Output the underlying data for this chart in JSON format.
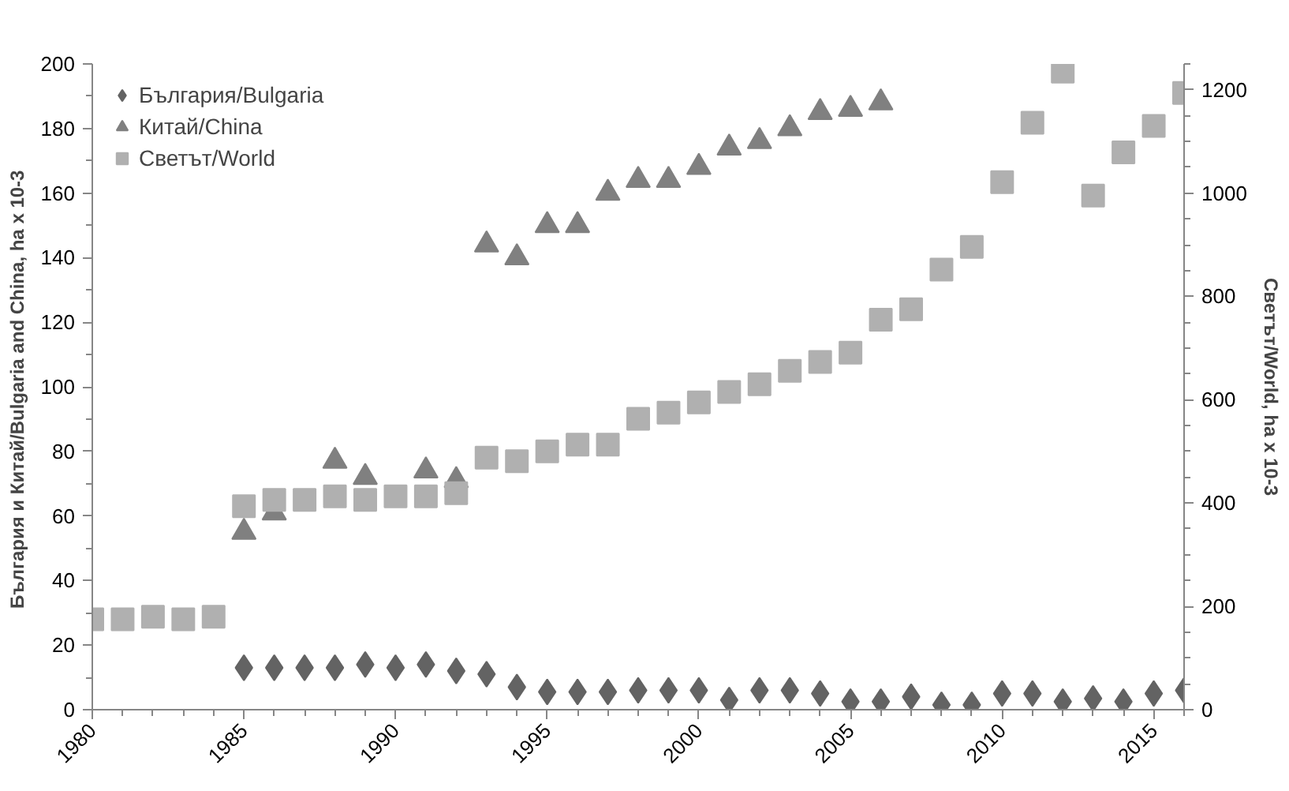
{
  "chart_data": {
    "type": "scatter",
    "xlabel": null,
    "ylabel": "България и Китай/Bulgaria  and China, ha x 10-3",
    "y2label": "Светът/World, ha x 10-3",
    "xlim": [
      1980,
      2016
    ],
    "xticks": [
      1980,
      1985,
      1990,
      1995,
      2000,
      2005,
      2010,
      2015
    ],
    "ylim": [
      0,
      200
    ],
    "yticks": [
      0,
      20,
      40,
      60,
      80,
      100,
      120,
      140,
      160,
      180,
      200
    ],
    "y2lim": [
      0,
      1250
    ],
    "y2ticks": [
      0,
      200,
      400,
      600,
      800,
      1000,
      1200
    ],
    "grid": false,
    "legend": "top left",
    "series": [
      {
        "name": "България/Bulgaria",
        "color": "#636363",
        "marker": "diamond",
        "x": [
          1985,
          1986,
          1987,
          1988,
          1989,
          1990,
          1991,
          1992,
          1993,
          1994,
          1995,
          1996,
          1997,
          1998,
          1999,
          2000,
          2001,
          2002,
          2003,
          2004,
          2005,
          2006,
          2007,
          2008,
          2009,
          2010,
          2011,
          2012,
          2013,
          2014,
          2015,
          2016
        ],
        "values": [
          13,
          13,
          13,
          13,
          14,
          13,
          14,
          12,
          11,
          7,
          5.5,
          5.5,
          5.5,
          6,
          6,
          6,
          3,
          6,
          6,
          5,
          2.5,
          2.5,
          4,
          1.5,
          1.5,
          5,
          5,
          2.5,
          3.5,
          2.5,
          5,
          6
        ]
      },
      {
        "name": "Китай/China",
        "color": "#808080",
        "marker": "triangle",
        "x": [
          1985,
          1986,
          1987,
          1988,
          1989,
          1990,
          1991,
          1992,
          1993,
          1994,
          1995,
          1996,
          1997,
          1998,
          1999,
          2000,
          2001,
          2002,
          2003,
          2004,
          2005,
          2006
        ],
        "values": [
          55,
          61,
          null,
          77,
          72,
          null,
          74,
          71,
          144,
          140,
          150,
          150,
          160,
          164,
          164,
          168,
          174,
          176,
          180,
          185,
          186,
          188
        ]
      },
      {
        "name": "Светът/World",
        "color": "#b0b0b0",
        "marker": "square",
        "axis": "y2",
        "x": [
          1980,
          1981,
          1982,
          1983,
          1984,
          1985,
          1986,
          1987,
          1988,
          1989,
          1990,
          1991,
          1992,
          1993,
          1994,
          1995,
          1996,
          1997,
          1998,
          1999,
          2000,
          2001,
          2002,
          2003,
          2004,
          2005,
          2006,
          2007,
          2008,
          2009,
          2010,
          2011,
          2012,
          2013,
          2014,
          2015,
          2016
        ],
        "values": [
          175,
          175,
          180,
          175,
          180,
          394,
          406,
          406,
          413,
          406,
          413,
          413,
          419,
          488,
          481,
          500,
          513,
          513,
          563,
          575,
          595,
          615,
          630,
          656,
          673,
          691,
          755,
          775,
          852,
          896,
          1021,
          1136,
          1235,
          995,
          1079,
          1130,
          1194
        ]
      }
    ]
  }
}
